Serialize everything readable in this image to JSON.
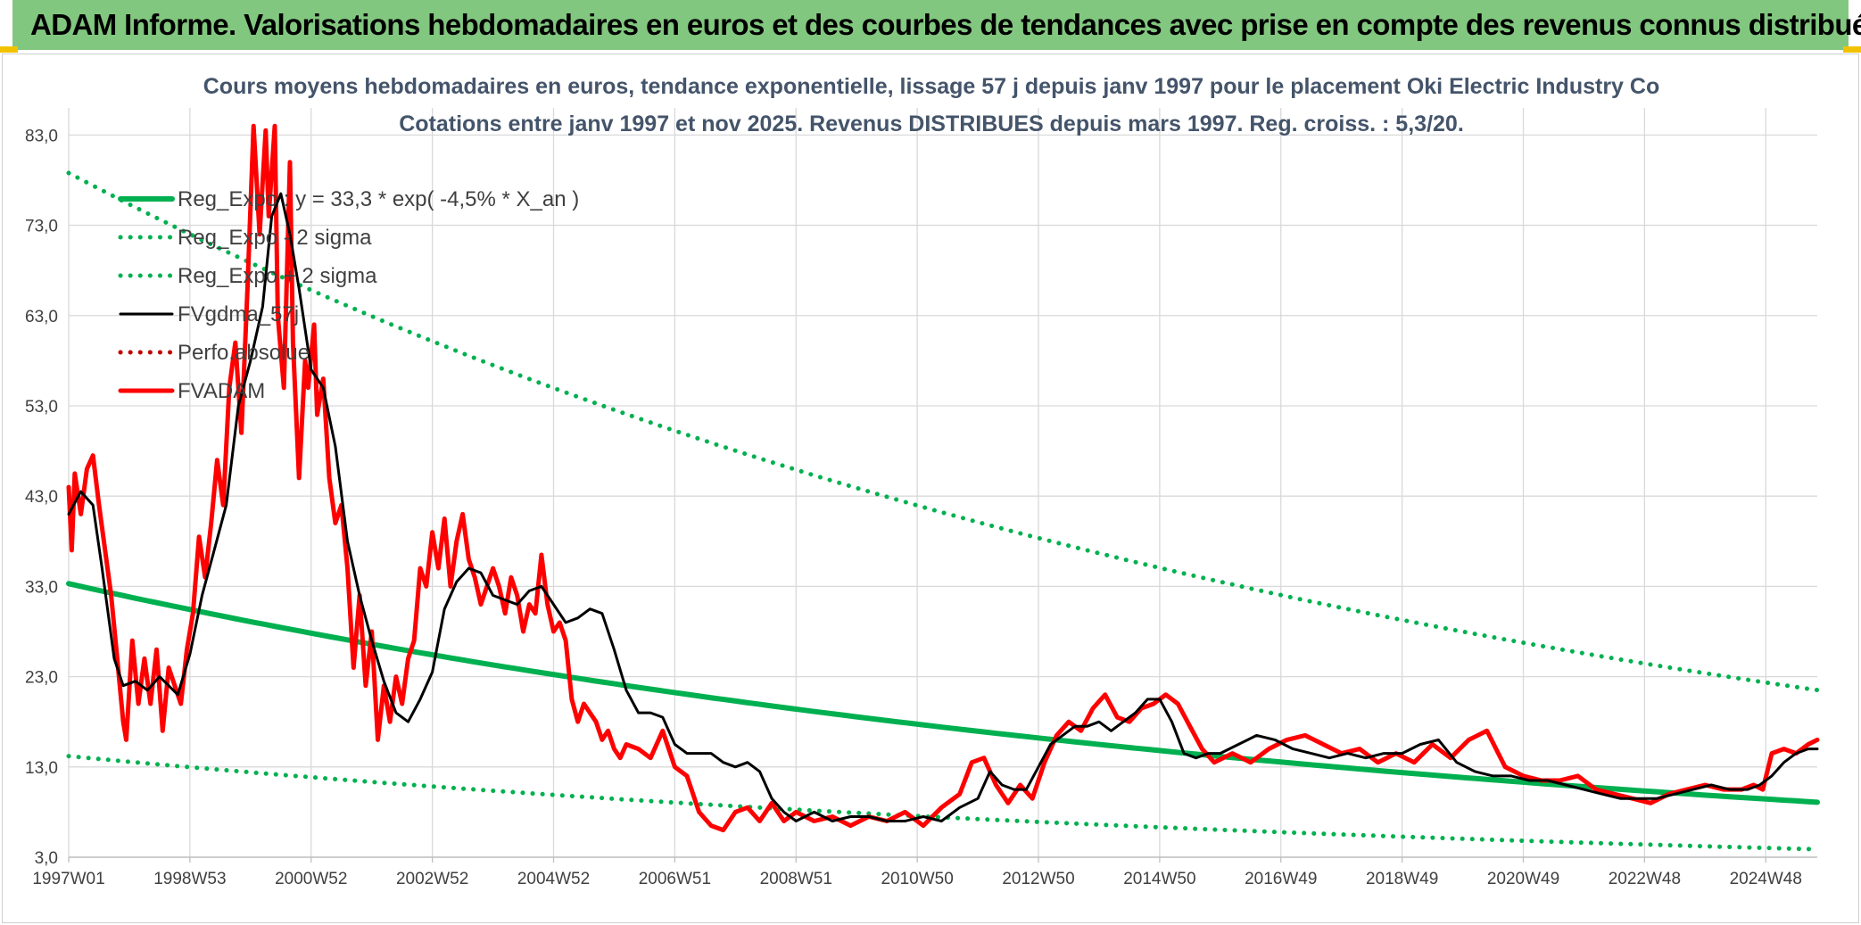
{
  "banner": {
    "title": "ADAM Informe. Valorisations hebdomadaires en euros et des courbes de tendances avec prise en compte des revenus connus distribués"
  },
  "colors": {
    "banner_bg": "#82c77f",
    "green": "#00b050",
    "red": "#ff0000",
    "black": "#000000",
    "grid": "#d9d9d9",
    "title": "#44546a"
  },
  "chart_data": {
    "type": "line",
    "title_line1": "Cours moyens hebdomadaires en euros, tendance exponentielle, lissage 57 j depuis janv 1997 pour le placement Oki Electric Industry Co",
    "title_line2": "Cotations entre janv 1997 et nov 2025. Revenus DISTRIBUES depuis mars 1997. Reg. croiss. : 5,3/20.",
    "xlabel": "",
    "ylabel": "",
    "x_tick_labels": [
      "1997W01",
      "1998W53",
      "2000W52",
      "2002W52",
      "2004W52",
      "2006W51",
      "2008W51",
      "2010W50",
      "2012W50",
      "2014W50",
      "2016W49",
      "2018W49",
      "2020W49",
      "2022W48",
      "2024W48"
    ],
    "x_tick_years": [
      1997.0,
      1999.0,
      2001.0,
      2003.0,
      2005.0,
      2007.0,
      2009.0,
      2011.0,
      2013.0,
      2015.0,
      2017.0,
      2019.0,
      2021.0,
      2023.0,
      2025.0
    ],
    "x_range": [
      1997.0,
      2025.85
    ],
    "y_ticks": [
      "3,0",
      "13,0",
      "23,0",
      "33,0",
      "43,0",
      "53,0",
      "63,0",
      "73,0",
      "83,0"
    ],
    "y_tick_values": [
      3,
      13,
      23,
      33,
      43,
      53,
      63,
      73,
      83
    ],
    "ylim": [
      3,
      86
    ],
    "grid": true,
    "legend_position": "top-left",
    "series": [
      {
        "name": "Reg_Expo : y = 33,3 * exp( -4,5% *  X_an )",
        "color": "#00b050",
        "style": "solid",
        "model": {
          "a": 33.3,
          "rate": -0.045
        }
      },
      {
        "name": "Reg_Expo - 2 sigma",
        "color": "#00b050",
        "style": "dotted",
        "model": {
          "a": 14.2,
          "rate": -0.045
        }
      },
      {
        "name": "Reg_Expo + 2 sigma",
        "color": "#00b050",
        "style": "dotted",
        "model": {
          "a": 78.8,
          "rate": -0.045
        }
      },
      {
        "name": "FVgdma_57j",
        "color": "#000000",
        "style": "solid",
        "x": [
          1997.0,
          1997.2,
          1997.4,
          1997.55,
          1997.75,
          1997.9,
          1998.1,
          1998.3,
          1998.5,
          1998.8,
          1999.0,
          1999.2,
          1999.4,
          1999.6,
          1999.8,
          2000.0,
          2000.2,
          2000.35,
          2000.5,
          2000.65,
          2000.8,
          2001.0,
          2001.2,
          2001.4,
          2001.6,
          2001.8,
          2002.0,
          2002.2,
          2002.4,
          2002.6,
          2002.8,
          2003.0,
          2003.2,
          2003.4,
          2003.6,
          2003.8,
          2004.0,
          2004.2,
          2004.4,
          2004.6,
          2004.8,
          2005.0,
          2005.2,
          2005.4,
          2005.6,
          2005.8,
          2006.0,
          2006.2,
          2006.4,
          2006.6,
          2006.8,
          2007.0,
          2007.2,
          2007.4,
          2007.6,
          2007.8,
          2008.0,
          2008.2,
          2008.4,
          2008.6,
          2008.8,
          2009.0,
          2009.3,
          2009.6,
          2009.9,
          2010.2,
          2010.5,
          2010.8,
          2011.1,
          2011.4,
          2011.7,
          2012.0,
          2012.2,
          2012.4,
          2012.6,
          2012.8,
          2013.0,
          2013.2,
          2013.4,
          2013.6,
          2013.8,
          2014.0,
          2014.2,
          2014.4,
          2014.6,
          2014.8,
          2015.0,
          2015.2,
          2015.4,
          2015.6,
          2015.8,
          2016.0,
          2016.3,
          2016.6,
          2016.9,
          2017.2,
          2017.5,
          2017.8,
          2018.1,
          2018.4,
          2018.7,
          2019.0,
          2019.3,
          2019.6,
          2019.9,
          2020.2,
          2020.5,
          2020.8,
          2021.1,
          2021.4,
          2021.7,
          2022.0,
          2022.3,
          2022.6,
          2022.9,
          2023.2,
          2023.5,
          2023.8,
          2024.1,
          2024.4,
          2024.7,
          2024.9,
          2025.1,
          2025.3,
          2025.5,
          2025.7,
          2025.85
        ],
        "y": [
          41.0,
          43.5,
          42.0,
          35.0,
          25.0,
          22.0,
          22.5,
          21.5,
          23.0,
          21.0,
          25.5,
          32.0,
          37.0,
          42.0,
          53.0,
          58.0,
          64.0,
          74.0,
          76.5,
          72.0,
          66.0,
          57.0,
          55.0,
          48.5,
          38.0,
          32.0,
          27.0,
          22.5,
          19.0,
          18.0,
          20.5,
          23.5,
          30.5,
          33.5,
          35.0,
          34.5,
          32.0,
          31.5,
          31.0,
          32.5,
          33.0,
          31.0,
          29.0,
          29.5,
          30.5,
          30.0,
          26.0,
          21.5,
          19.0,
          19.0,
          18.5,
          15.5,
          14.5,
          14.5,
          14.5,
          13.5,
          13.0,
          13.5,
          12.5,
          9.5,
          8.0,
          7.0,
          8.0,
          7.0,
          7.5,
          7.5,
          7.0,
          7.0,
          7.5,
          7.0,
          8.5,
          9.5,
          12.5,
          11.0,
          10.5,
          10.5,
          13.0,
          15.5,
          16.5,
          17.5,
          17.5,
          18.0,
          17.0,
          18.0,
          19.0,
          20.5,
          20.5,
          18.0,
          14.5,
          14.0,
          14.5,
          14.5,
          15.5,
          16.5,
          16.0,
          15.0,
          14.5,
          14.0,
          14.5,
          14.0,
          14.5,
          14.5,
          15.5,
          16.0,
          13.5,
          12.5,
          12.0,
          12.0,
          11.5,
          11.5,
          11.0,
          10.5,
          10.0,
          9.5,
          9.5,
          9.5,
          10.0,
          10.5,
          11.0,
          10.5,
          10.5,
          11.0,
          12.0,
          13.5,
          14.5,
          15.0,
          15.0
        ]
      },
      {
        "name": "Perfo.absolue",
        "color": "#c00000",
        "style": "dotted",
        "x": [],
        "y": []
      },
      {
        "name": "FVADAM",
        "color": "#ff0000",
        "style": "solid",
        "x": [
          1997.0,
          1997.05,
          1997.1,
          1997.2,
          1997.3,
          1997.4,
          1997.5,
          1997.6,
          1997.7,
          1997.8,
          1997.9,
          1997.95,
          1998.05,
          1998.15,
          1998.25,
          1998.35,
          1998.45,
          1998.55,
          1998.65,
          1998.75,
          1998.85,
          1998.95,
          1999.05,
          1999.15,
          1999.25,
          1999.35,
          1999.45,
          1999.55,
          1999.65,
          1999.75,
          1999.85,
          1999.95,
          2000.05,
          2000.15,
          2000.25,
          2000.3,
          2000.4,
          2000.45,
          2000.55,
          2000.65,
          2000.7,
          2000.8,
          2000.9,
          2000.95,
          2001.05,
          2001.1,
          2001.2,
          2001.3,
          2001.4,
          2001.5,
          2001.6,
          2001.7,
          2001.8,
          2001.9,
          2002.0,
          2002.1,
          2002.2,
          2002.3,
          2002.4,
          2002.5,
          2002.6,
          2002.7,
          2002.8,
          2002.9,
          2003.0,
          2003.1,
          2003.2,
          2003.3,
          2003.4,
          2003.5,
          2003.6,
          2003.7,
          2003.8,
          2003.9,
          2004.0,
          2004.1,
          2004.2,
          2004.3,
          2004.4,
          2004.5,
          2004.6,
          2004.7,
          2004.8,
          2004.9,
          2005.0,
          2005.1,
          2005.2,
          2005.3,
          2005.4,
          2005.5,
          2005.6,
          2005.7,
          2005.8,
          2005.9,
          2006.0,
          2006.1,
          2006.2,
          2006.4,
          2006.6,
          2006.8,
          2007.0,
          2007.2,
          2007.4,
          2007.6,
          2007.8,
          2008.0,
          2008.2,
          2008.4,
          2008.6,
          2008.8,
          2009.0,
          2009.3,
          2009.6,
          2009.9,
          2010.2,
          2010.5,
          2010.8,
          2011.1,
          2011.4,
          2011.7,
          2011.9,
          2012.1,
          2012.3,
          2012.5,
          2012.7,
          2012.9,
          2013.1,
          2013.3,
          2013.5,
          2013.7,
          2013.9,
          2014.1,
          2014.3,
          2014.5,
          2014.7,
          2014.9,
          2015.1,
          2015.3,
          2015.5,
          2015.7,
          2015.9,
          2016.2,
          2016.5,
          2016.8,
          2017.1,
          2017.4,
          2017.7,
          2018.0,
          2018.3,
          2018.6,
          2018.9,
          2019.2,
          2019.5,
          2019.8,
          2020.1,
          2020.4,
          2020.7,
          2021.0,
          2021.3,
          2021.6,
          2021.9,
          2022.2,
          2022.5,
          2022.8,
          2023.1,
          2023.4,
          2023.7,
          2024.0,
          2024.3,
          2024.6,
          2024.8,
          2024.95,
          2025.1,
          2025.3,
          2025.5,
          2025.7,
          2025.85
        ],
        "y": [
          44.0,
          37.0,
          45.5,
          41.0,
          46.0,
          47.5,
          42.0,
          37.0,
          32.0,
          25.0,
          18.0,
          16.0,
          27.0,
          20.0,
          25.0,
          20.0,
          26.0,
          17.0,
          24.0,
          22.0,
          20.0,
          26.0,
          30.0,
          38.5,
          34.0,
          40.0,
          47.0,
          42.0,
          55.0,
          60.0,
          50.0,
          66.0,
          84.0,
          72.0,
          83.5,
          74.0,
          84.0,
          63.0,
          55.0,
          80.0,
          60.0,
          45.0,
          58.0,
          55.0,
          62.0,
          52.0,
          56.0,
          45.0,
          40.0,
          42.0,
          35.0,
          24.0,
          32.0,
          22.0,
          28.0,
          16.0,
          22.0,
          18.0,
          23.0,
          20.0,
          25.0,
          27.0,
          35.0,
          33.0,
          39.0,
          35.0,
          40.5,
          33.0,
          38.0,
          41.0,
          36.0,
          34.0,
          31.0,
          33.0,
          35.0,
          33.0,
          30.0,
          34.0,
          32.0,
          28.0,
          31.0,
          30.0,
          36.5,
          31.0,
          28.0,
          29.0,
          27.0,
          20.5,
          18.0,
          20.0,
          19.0,
          18.0,
          16.0,
          17.0,
          15.0,
          14.0,
          15.5,
          15.0,
          14.0,
          17.0,
          13.0,
          12.0,
          8.0,
          6.5,
          6.0,
          8.0,
          8.5,
          7.0,
          9.0,
          7.0,
          8.0,
          7.0,
          7.5,
          6.5,
          7.5,
          7.0,
          8.0,
          6.5,
          8.5,
          10.0,
          13.5,
          14.0,
          11.0,
          9.0,
          11.0,
          9.5,
          13.5,
          16.5,
          18.0,
          17.0,
          19.5,
          21.0,
          18.5,
          18.0,
          19.5,
          20.0,
          21.0,
          20.0,
          17.5,
          15.0,
          13.5,
          14.5,
          13.5,
          15.0,
          16.0,
          16.5,
          15.5,
          14.5,
          15.0,
          13.5,
          14.5,
          13.5,
          15.5,
          14.0,
          16.0,
          17.0,
          13.0,
          12.0,
          11.5,
          11.5,
          12.0,
          10.5,
          10.0,
          9.5,
          9.0,
          10.0,
          10.5,
          11.0,
          10.5,
          10.5,
          11.0,
          10.5,
          14.5,
          15.0,
          14.5,
          15.5,
          16.0
        ]
      }
    ]
  }
}
